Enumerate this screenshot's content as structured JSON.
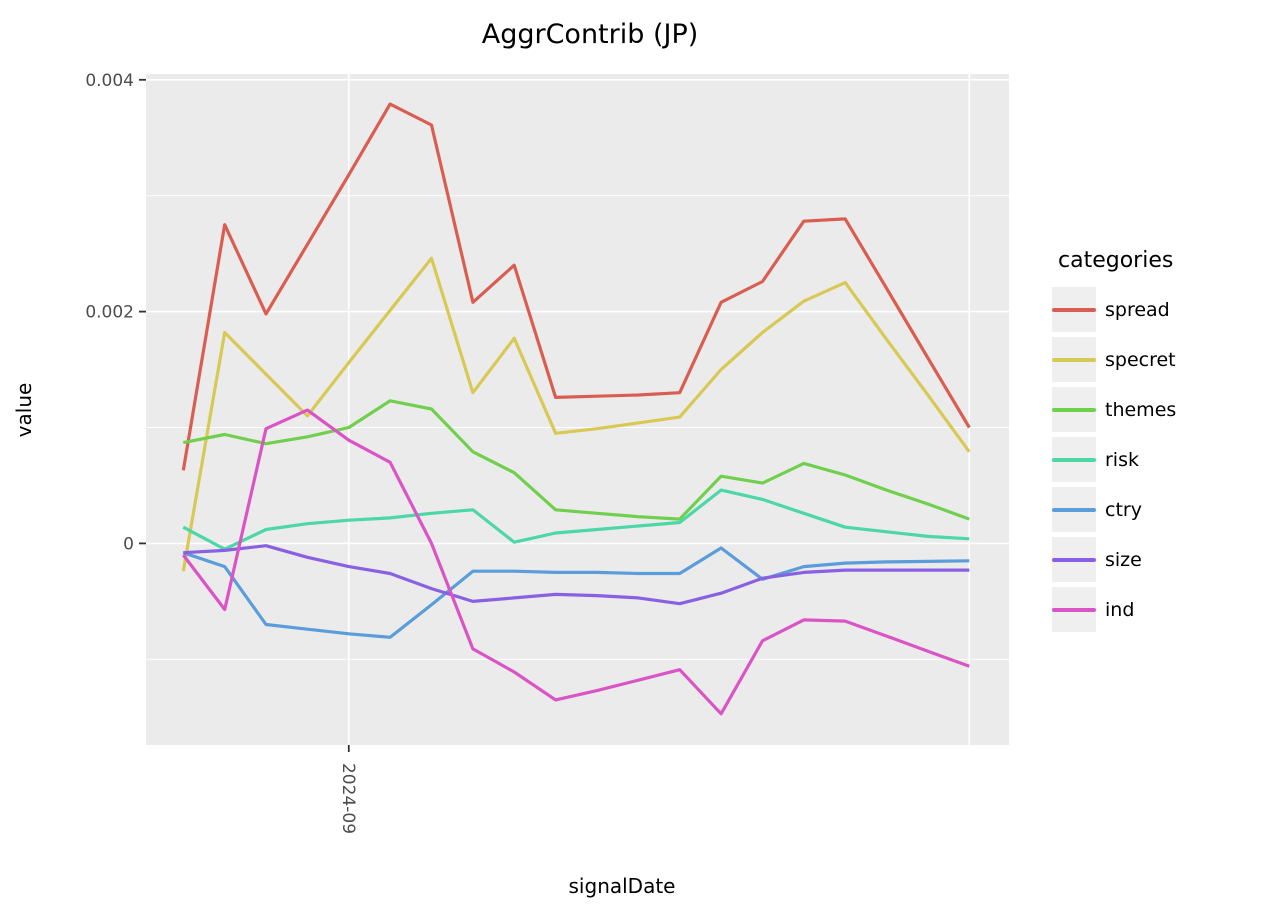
{
  "title": "AggrContrib (JP)",
  "y_axis": {
    "label": "value",
    "ticks": [
      {
        "label": "0.004",
        "value": 0.004
      },
      {
        "label": "0.002",
        "value": 0.002
      },
      {
        "label": "0",
        "value": 0
      }
    ]
  },
  "x_axis": {
    "label": "signalDate",
    "tick_label": "2024-09"
  },
  "legend": {
    "title": "categories",
    "items": [
      {
        "label": "spread"
      },
      {
        "label": "specret"
      },
      {
        "label": "themes"
      },
      {
        "label": "risk"
      },
      {
        "label": "ctry"
      },
      {
        "label": "size"
      },
      {
        "label": "ind"
      }
    ]
  },
  "chart_data": {
    "type": "line",
    "title": "AggrContrib (JP)",
    "xlabel": "signalDate",
    "ylabel": "value",
    "x_description": "20 evenly spaced signal dates; only labeled tick is 2024-09 at point index 4 (0-based); an unlabeled vertical gridline sits at point index 19",
    "x_tick": {
      "label": "2024-09",
      "point_index": 4
    },
    "x_gridline_point_indices": [
      4,
      19
    ],
    "y_major_gridlines": [
      0,
      0.002,
      0.004
    ],
    "y_minor_gridlines": [
      -0.001,
      0.001,
      0.003
    ],
    "ylim": [
      -0.00174,
      0.00405
    ],
    "panel_background": "#ebebeb",
    "gridline_color": "#ffffff",
    "series": [
      {
        "name": "spread",
        "color": "#da5d52",
        "values": [
          0.00063,
          0.00275,
          0.00198,
          0.00258,
          0.00318,
          0.00379,
          0.00361,
          0.00208,
          0.0024,
          0.00126,
          0.00127,
          0.00128,
          0.0013,
          0.00208,
          0.00226,
          0.00278,
          0.0028,
          0.0022,
          0.0016,
          0.001
        ]
      },
      {
        "name": "specret",
        "color": "#d8c955",
        "values": [
          -0.00024,
          0.00182,
          0.00146,
          0.0011,
          0.00156,
          0.00201,
          0.00246,
          0.0013,
          0.00177,
          0.00095,
          0.00099,
          0.00104,
          0.00109,
          0.0015,
          0.00182,
          0.00209,
          0.00225,
          0.00176,
          0.00128,
          0.00079
        ]
      },
      {
        "name": "themes",
        "color": "#70d04e",
        "values": [
          0.00087,
          0.00094,
          0.00086,
          0.00092,
          0.001,
          0.00123,
          0.00116,
          0.00079,
          0.00061,
          0.00029,
          0.00026,
          0.00023,
          0.00021,
          0.00058,
          0.00052,
          0.00069,
          0.00059,
          0.00046,
          0.00034,
          0.00021
        ]
      },
      {
        "name": "risk",
        "color": "#4cd7a6",
        "values": [
          0.00014,
          -5e-05,
          0.00012,
          0.00017,
          0.0002,
          0.00022,
          0.00026,
          0.00029,
          1e-05,
          9e-05,
          0.00012,
          0.00015,
          0.00018,
          0.00046,
          0.00038,
          0.00026,
          0.00014,
          0.0001,
          6e-05,
          4e-05
        ]
      },
      {
        "name": "ctry",
        "color": "#5b9dda",
        "values": [
          -8e-05,
          -0.0002,
          -0.0007,
          -0.00074,
          -0.00078,
          -0.00081,
          -0.00053,
          -0.00024,
          -0.00024,
          -0.00025,
          -0.00025,
          -0.00026,
          -0.00026,
          -4e-05,
          -0.00031,
          -0.0002,
          -0.00017,
          -0.00016,
          -0.000155,
          -0.00015
        ]
      },
      {
        "name": "size",
        "color": "#8a60e2",
        "values": [
          -8e-05,
          -6e-05,
          -2e-05,
          -0.00012,
          -0.0002,
          -0.00026,
          -0.00039,
          -0.0005,
          -0.00047,
          -0.00044,
          -0.00045,
          -0.00047,
          -0.00052,
          -0.00043,
          -0.0003,
          -0.00025,
          -0.00023,
          -0.00023,
          -0.00023,
          -0.00023
        ]
      },
      {
        "name": "ind",
        "color": "#da54c6",
        "values": [
          -0.0001,
          -0.00057,
          0.00099,
          0.00115,
          0.00089,
          0.0007,
          0.0,
          -0.00091,
          -0.00111,
          -0.00135,
          -0.00127,
          -0.00118,
          -0.00109,
          -0.00147,
          -0.00084,
          -0.00066,
          -0.00067,
          -0.0008,
          -0.00093,
          -0.00106
        ]
      }
    ],
    "legend_position": "right",
    "grid": true
  }
}
